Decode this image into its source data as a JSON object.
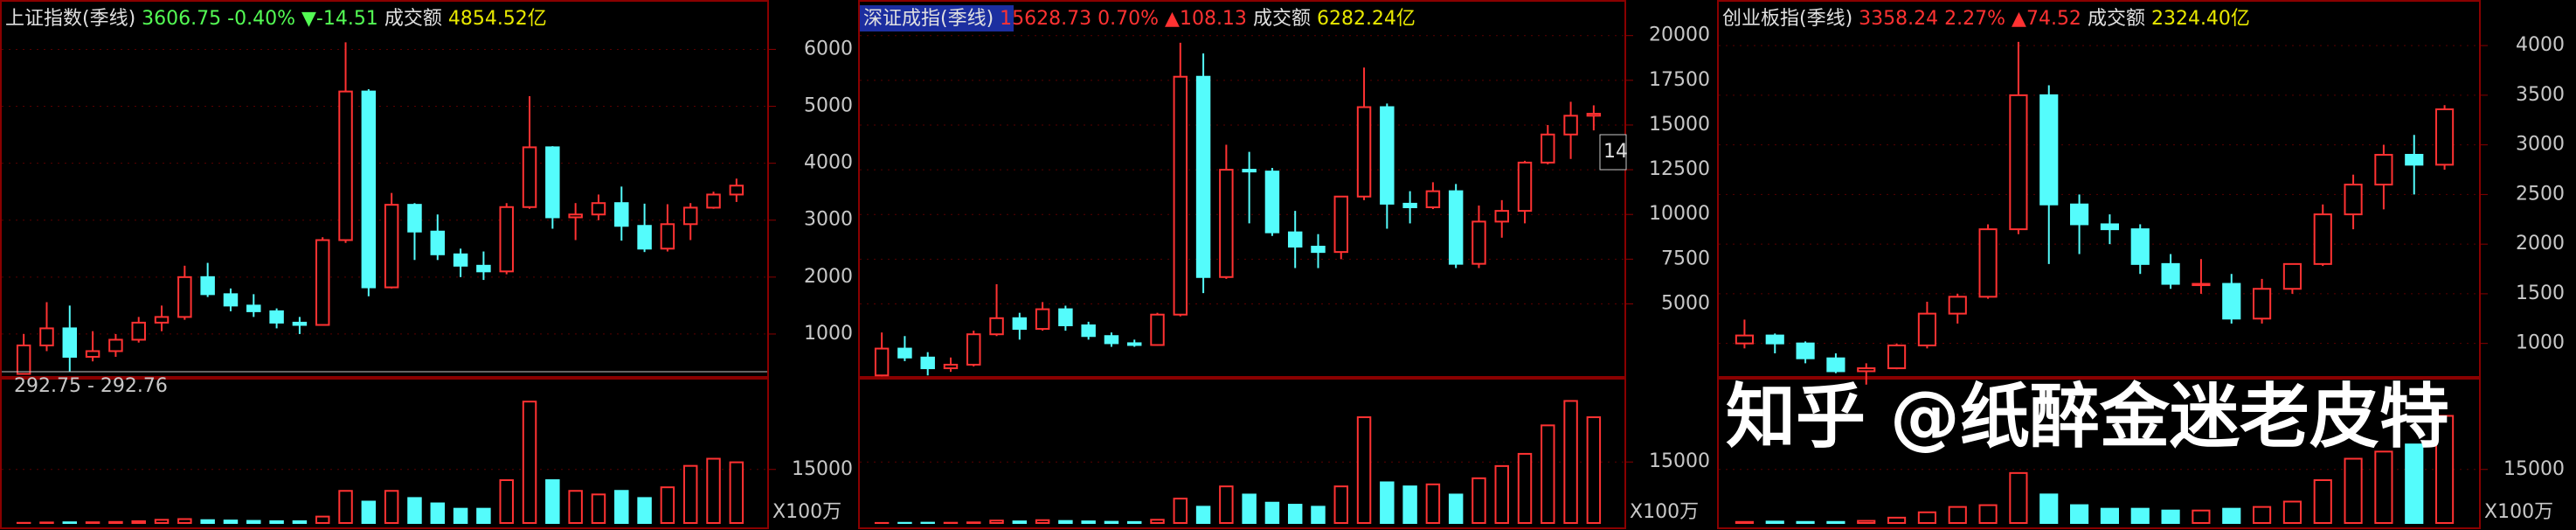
{
  "chart_data": [
    {
      "type": "candlestick",
      "title": "上证指数(季线)",
      "quote": "3606.75 -0.40%",
      "change": "▼-14.51",
      "turnover_label": "成交额",
      "turnover": "4854.52亿",
      "quote_color": "#54fc54",
      "selected": false,
      "annotation": "292.75 - 292.76",
      "up_color": "#ff3232",
      "down_color": "#54fcfc",
      "open": [
        300,
        800,
        1100,
        600,
        700,
        900,
        1200,
        1300,
        2000,
        1700,
        1500,
        1400,
        1200,
        1160,
        2650,
        5260,
        1820,
        3270,
        2800,
        2400,
        2200,
        2100,
        3230,
        4280,
        3050,
        3100,
        3300,
        2900,
        2500,
        2930,
        3220,
        3450
      ],
      "high": [
        1000,
        1560,
        1500,
        1050,
        1000,
        1300,
        1500,
        2200,
        2250,
        1800,
        1700,
        1450,
        1300,
        2700,
        6124,
        5300,
        3478,
        3300,
        3100,
        2500,
        2450,
        3300,
        5178,
        4300,
        3300,
        3450,
        3590,
        3290,
        3280,
        3300,
        3500,
        3730
      ],
      "low": [
        290,
        700,
        330,
        520,
        600,
        850,
        1050,
        1250,
        1650,
        1400,
        1300,
        1100,
        1000,
        1150,
        2600,
        1664,
        1800,
        2300,
        2300,
        2000,
        1950,
        2050,
        3200,
        2850,
        2650,
        3000,
        2640,
        2440,
        2450,
        2650,
        3200,
        3320
      ],
      "close": [
        800,
        1100,
        600,
        700,
        900,
        1200,
        1300,
        2000,
        1700,
        1500,
        1400,
        1200,
        1160,
        2650,
        5260,
        1820,
        3270,
        2800,
        2400,
        2200,
        2100,
        3230,
        4280,
        3050,
        3100,
        3300,
        2900,
        2500,
        2930,
        3220,
        3450,
        3606.75
      ],
      "volume": [
        50,
        150,
        200,
        200,
        300,
        500,
        900,
        1100,
        800,
        700,
        600,
        500,
        500,
        1800,
        9000,
        6000,
        9000,
        7000,
        5500,
        4000,
        4000,
        12000,
        34000,
        12000,
        9000,
        8000,
        9000,
        7000,
        10000,
        16000,
        18000,
        17000
      ],
      "ylim": [
        277,
        6867
      ],
      "yticks": [
        1000,
        2000,
        3000,
        4000,
        5000,
        6000
      ],
      "vol_ylim": [
        0,
        36000
      ],
      "vol_yticks": [
        15000
      ],
      "vol_unit": "X100万"
    },
    {
      "type": "candlestick",
      "title": "深证成指(季线)",
      "quote": "15628.73 0.70%",
      "change": "▲108.13",
      "turnover_label": "成交额",
      "turnover": "6282.24亿",
      "quote_color": "#ff3232",
      "selected": true,
      "annotation": "14",
      "up_color": "#ff3232",
      "down_color": "#54fcfc",
      "open": [
        1000,
        2500,
        2000,
        1400,
        1600,
        3300,
        4200,
        3600,
        4700,
        3800,
        3200,
        2800,
        2700,
        4400,
        17700,
        6500,
        12500,
        12400,
        9000,
        8200,
        7900,
        11000,
        16000,
        10600,
        10400,
        11300,
        7240,
        9600,
        10200,
        12900,
        14470,
        15520
      ],
      "high": [
        3400,
        3200,
        2300,
        2000,
        3500,
        6100,
        4500,
        5100,
        4900,
        4000,
        3400,
        3000,
        4500,
        19600,
        19000,
        13900,
        13500,
        12600,
        10200,
        8900,
        11000,
        18211,
        16200,
        11300,
        11800,
        11700,
        10500,
        10800,
        13000,
        15000,
        16300,
        16100
      ],
      "low": [
        950,
        1800,
        1000,
        1200,
        1500,
        3200,
        3000,
        3500,
        3500,
        3000,
        2600,
        2600,
        2650,
        4300,
        5600,
        6400,
        9500,
        8800,
        7000,
        7000,
        7500,
        10800,
        9200,
        9500,
        10300,
        7000,
        7000,
        8700,
        9500,
        12800,
        13100,
        14700
      ],
      "close": [
        2500,
        2000,
        1400,
        1600,
        3300,
        4200,
        3600,
        4700,
        3800,
        3200,
        2800,
        2700,
        4400,
        17700,
        6500,
        12500,
        12400,
        9000,
        8200,
        7900,
        11000,
        16000,
        10600,
        10400,
        11300,
        7240,
        9600,
        10200,
        12900,
        14470,
        15520,
        15628.73
      ],
      "volume": [
        20,
        50,
        80,
        60,
        150,
        600,
        400,
        700,
        500,
        400,
        300,
        250,
        800,
        6000,
        4000,
        9000,
        7000,
        5000,
        4500,
        4000,
        9000,
        26000,
        10000,
        9000,
        9500,
        7000,
        11000,
        14000,
        17000,
        24000,
        30000,
        26000
      ],
      "ylim": [
        1012,
        21990
      ],
      "yticks": [
        5000,
        7500,
        10000,
        12500,
        15000,
        17500,
        20000
      ],
      "vol_ylim": [
        0,
        31600
      ],
      "vol_yticks": [
        15000
      ],
      "vol_unit": "X100万"
    },
    {
      "type": "candlestick",
      "title": "创业板指(季线)",
      "quote": "3358.24 2.27%",
      "change": "▲74.52",
      "turnover_label": "成交额",
      "turnover": "2324.40亿",
      "quote_color": "#ff3232",
      "selected": false,
      "up_color": "#ff3232",
      "down_color": "#54fcfc",
      "open": [
        1000,
        1080,
        1000,
        850,
        720,
        750,
        980,
        1300,
        1470,
        2150,
        3500,
        2400,
        2200,
        2150,
        1800,
        1600,
        1600,
        1250,
        1550,
        1800,
        2300,
        2600,
        2900,
        2800
      ],
      "high": [
        1240,
        1100,
        1020,
        900,
        800,
        1000,
        1420,
        1500,
        2200,
        4037,
        3600,
        2500,
        2300,
        2200,
        1900,
        1850,
        1700,
        1650,
        1800,
        2400,
        2700,
        3000,
        3100,
        3400
      ],
      "low": [
        950,
        900,
        800,
        700,
        585,
        740,
        950,
        1200,
        1450,
        2100,
        1800,
        1900,
        2000,
        1700,
        1550,
        1500,
        1200,
        1200,
        1500,
        1780,
        2150,
        2350,
        2500,
        2750
      ],
      "close": [
        1080,
        1000,
        850,
        720,
        750,
        980,
        1300,
        1470,
        2150,
        3500,
        2400,
        2200,
        2150,
        1800,
        1600,
        1600,
        1250,
        1550,
        1800,
        2300,
        2600,
        2900,
        2800,
        3358.24
      ],
      "volume": [
        300,
        400,
        300,
        300,
        600,
        1500,
        3000,
        4500,
        5000,
        14000,
        8000,
        5000,
        4000,
        4000,
        3500,
        3500,
        4000,
        4500,
        6000,
        12000,
        18000,
        20000,
        22000,
        30000
      ],
      "ylim": [
        680,
        4459
      ],
      "yticks": [
        1000,
        1500,
        2000,
        2500,
        3000,
        3500,
        4000
      ],
      "vol_ylim": [
        0,
        36000
      ],
      "vol_yticks": [
        15000
      ],
      "vol_unit": "X100万"
    }
  ],
  "watermark": "知乎 @纸醉金迷老皮特"
}
